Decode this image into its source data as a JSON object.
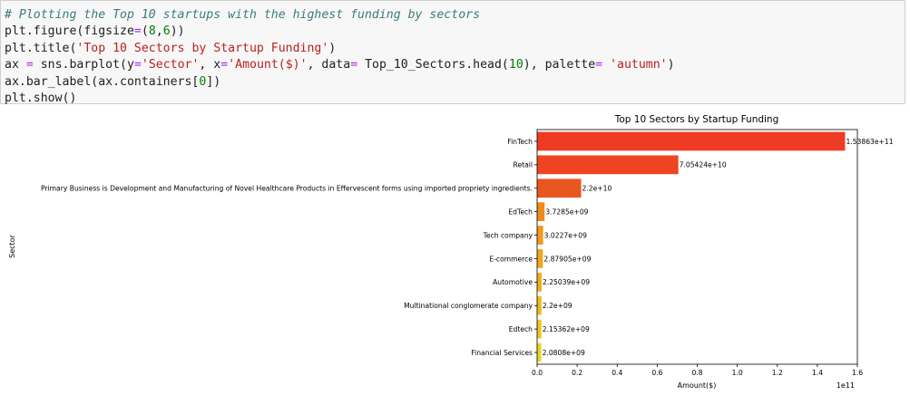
{
  "notebook": {
    "code_lines": [
      [
        {
          "t": "# Plotting the Top 10 startups with the highest funding by sectors",
          "c": "comment"
        }
      ],
      [
        {
          "t": "plt.figure(figsize"
        },
        {
          "t": "=",
          "c": "op"
        },
        {
          "t": "("
        },
        {
          "t": "8",
          "c": "num"
        },
        {
          "t": ","
        },
        {
          "t": "6",
          "c": "num"
        },
        {
          "t": "))"
        }
      ],
      [
        {
          "t": "plt.title("
        },
        {
          "t": "'Top 10 Sectors by Startup Funding'",
          "c": "str"
        },
        {
          "t": ")"
        }
      ],
      [
        {
          "t": "ax "
        },
        {
          "t": "=",
          "c": "op"
        },
        {
          "t": " sns.barplot(y"
        },
        {
          "t": "=",
          "c": "op"
        },
        {
          "t": "'Sector'",
          "c": "str"
        },
        {
          "t": ", x"
        },
        {
          "t": "=",
          "c": "op"
        },
        {
          "t": "'Amount($)'",
          "c": "str"
        },
        {
          "t": ", data"
        },
        {
          "t": "=",
          "c": "op"
        },
        {
          "t": " Top_10_Sectors.head("
        },
        {
          "t": "10",
          "c": "num"
        },
        {
          "t": "), palette"
        },
        {
          "t": "=",
          "c": "op"
        },
        {
          "t": " "
        },
        {
          "t": "'autumn'",
          "c": "str"
        },
        {
          "t": ")"
        }
      ],
      [
        {
          "t": "ax.bar_label(ax.containers["
        },
        {
          "t": "0",
          "c": "num"
        },
        {
          "t": "])"
        }
      ],
      [
        {
          "t": "plt.show()"
        }
      ]
    ]
  },
  "chart_data": {
    "type": "bar",
    "orientation": "horizontal",
    "title": "Top 10 Sectors by Startup Funding",
    "xlabel": "Amount($)",
    "ylabel": "Sector",
    "x_offset_label": "1e11",
    "xlim": [
      0,
      1.6
    ],
    "xticks": [
      0.0,
      0.2,
      0.4,
      0.6,
      0.8,
      1.0,
      1.2,
      1.4,
      1.6
    ],
    "xtick_labels": [
      "0.0",
      "0.2",
      "0.4",
      "0.6",
      "0.8",
      "1.0",
      "1.2",
      "1.4",
      "1.6"
    ],
    "categories": [
      "FinTech",
      "Retail",
      "Primary Business is Development and Manufacturing of Novel Healthcare Products in Effervescent forms using imported propriety ingredients.",
      "EdTech",
      "Tech company",
      "E-commerce",
      "Automotive",
      "Multinational conglomerate company",
      "Edtech",
      "Financial Services"
    ],
    "values": [
      1.53863,
      0.705424,
      0.22,
      0.037285,
      0.030227,
      0.0287905,
      0.0225039,
      0.022,
      0.0215362,
      0.020808
    ],
    "data_labels": [
      "1.53863e+11",
      "7.05424e+10",
      "2.2e+10",
      "3.7285e+09",
      "3.0227e+09",
      "2.87905e+09",
      "2.25039e+09",
      "2.2e+09",
      "2.15362e+09",
      "2.0808e+09"
    ],
    "colors": [
      "#ef3a24",
      "#ee4422",
      "#e8561f",
      "#f08a1c",
      "#f19a1b",
      "#f0a51a",
      "#f0b01a",
      "#efbd1c",
      "#eec81e",
      "#e9d422"
    ],
    "grid": false,
    "legend": "none"
  }
}
